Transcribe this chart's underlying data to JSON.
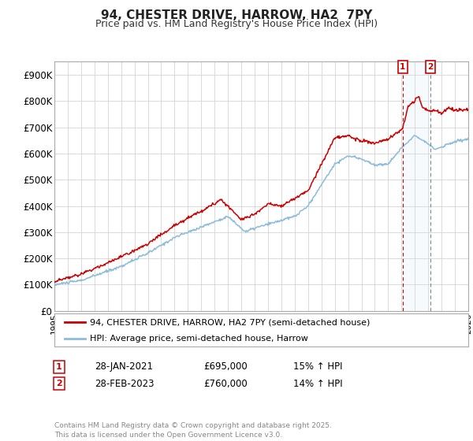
{
  "title": "94, CHESTER DRIVE, HARROW, HA2  7PY",
  "subtitle": "Price paid vs. HM Land Registry's House Price Index (HPI)",
  "yticks": [
    0,
    100000,
    200000,
    300000,
    400000,
    500000,
    600000,
    700000,
    800000,
    900000
  ],
  "ytick_labels": [
    "£0",
    "£100K",
    "£200K",
    "£300K",
    "£400K",
    "£500K",
    "£600K",
    "£700K",
    "£800K",
    "£900K"
  ],
  "ylim": [
    0,
    950000
  ],
  "xlim": [
    1995,
    2026
  ],
  "line1_color": "#cc0000",
  "line2_color": "#8bbcda",
  "shade_color": "#d0e8f5",
  "line1_label": "94, CHESTER DRIVE, HARROW, HA2 7PY (semi-detached house)",
  "line2_label": "HPI: Average price, semi-detached house, Harrow",
  "marker1_price": 695000,
  "marker2_price": 760000,
  "marker1_date": "28-JAN-2021",
  "marker2_date": "28-FEB-2023",
  "marker1_pct": "15% ↑ HPI",
  "marker2_pct": "14% ↑ HPI",
  "footer": "Contains HM Land Registry data © Crown copyright and database right 2025.\nThis data is licensed under the Open Government Licence v3.0.",
  "bg_color": "#ffffff",
  "plot_bg_color": "#ffffff",
  "grid_color": "#cccccc",
  "annotation_box_color": "#cc0000",
  "title_fontsize": 11,
  "subtitle_fontsize": 9
}
